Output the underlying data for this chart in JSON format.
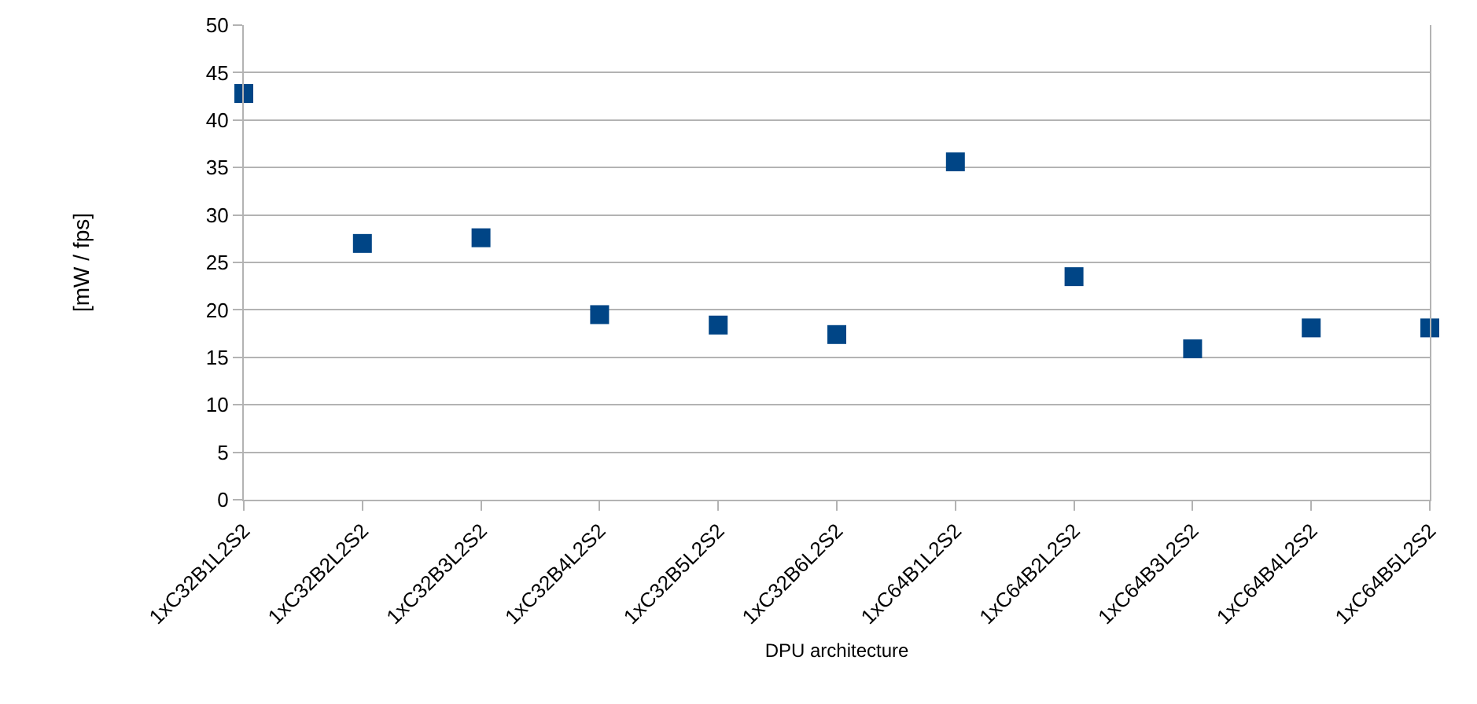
{
  "chart_data": {
    "type": "scatter",
    "xlabel": "DPU architecture",
    "ylabel": "[mW / fps]",
    "categories": [
      "1xC32B1L2S2",
      "1xC32B2L2S2",
      "1xC32B3L2S2",
      "1xC32B4L2S2",
      "1xC32B5L2S2",
      "1xC32B6L2S2",
      "1xC64B1L2S2",
      "1xC64B2L2S2",
      "1xC64B3L2S2",
      "1xC64B4L2S2",
      "1xC64B5L2S2"
    ],
    "series": [
      {
        "color": "#004586",
        "values": [
          42.8,
          27.0,
          27.6,
          19.5,
          18.4,
          17.4,
          35.6,
          23.5,
          15.9,
          18.1,
          18.1
        ]
      }
    ],
    "ylim": [
      0,
      50
    ],
    "yticks": [
      0,
      5,
      10,
      15,
      20,
      25,
      30,
      35,
      40,
      45,
      50
    ],
    "grid": "y",
    "marker": "square"
  }
}
